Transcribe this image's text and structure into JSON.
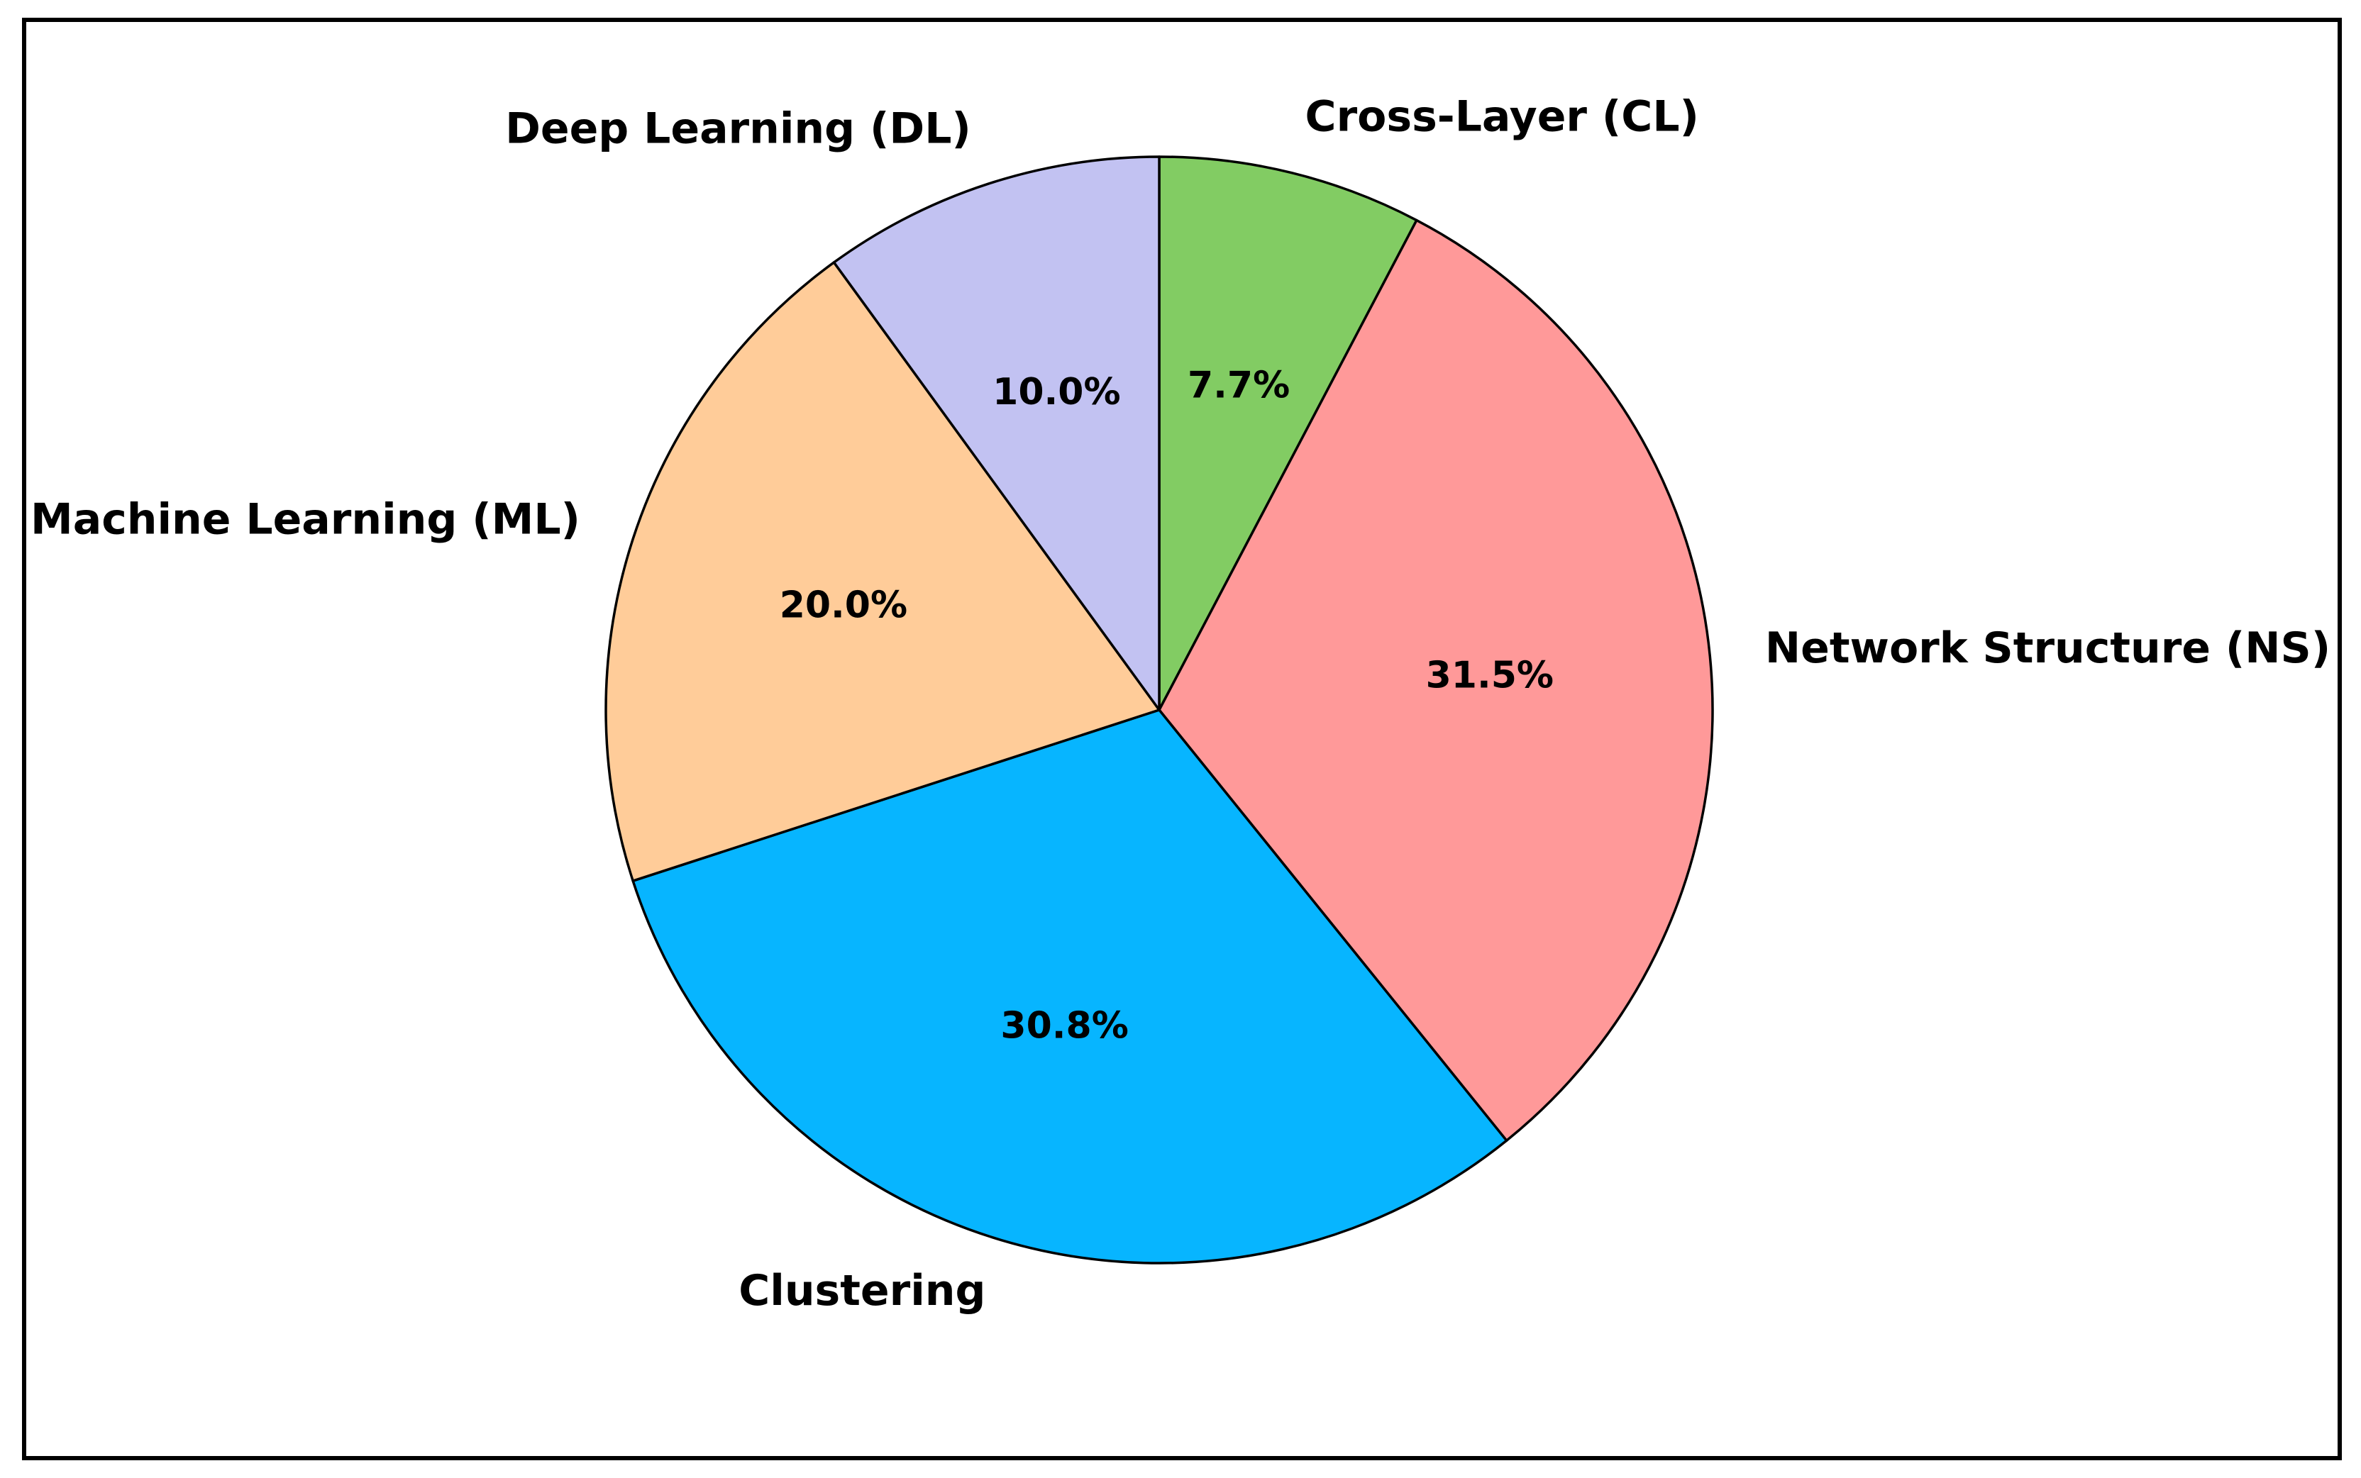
{
  "chart_data": {
    "type": "pie",
    "title": "",
    "start_angle_deg": 90,
    "direction": "clockwise",
    "slices": [
      {
        "label": "Cross-Layer (CL)",
        "value": 7.7,
        "pct_text": "7.7%",
        "color": "#82cc63"
      },
      {
        "label": "Network Structure (NS)",
        "value": 31.5,
        "pct_text": "31.5%",
        "color": "#ff9999"
      },
      {
        "label": "Clustering",
        "value": 30.8,
        "pct_text": "30.8%",
        "color": "#07b5ff"
      },
      {
        "label": "Machine Learning (ML)",
        "value": 20.0,
        "pct_text": "20.0%",
        "color": "#ffcc99"
      },
      {
        "label": "Deep Learning (DL)",
        "value": 10.0,
        "pct_text": "10.0%",
        "color": "#c2c2f2"
      }
    ]
  }
}
